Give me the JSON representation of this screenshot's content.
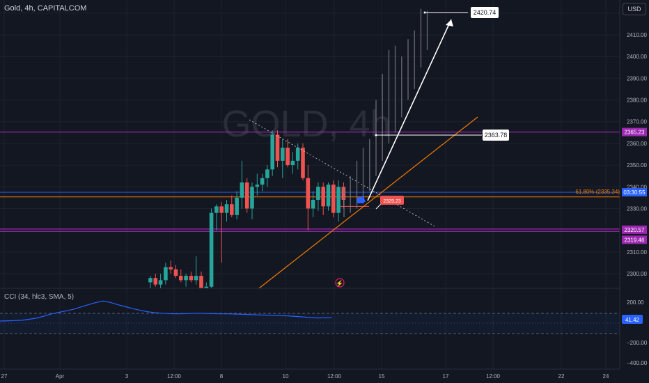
{
  "header": {
    "symbol": "Gold",
    "interval": "4h",
    "exchange": "CAPITALCOM",
    "separator": ", ",
    "currency": "USD"
  },
  "watermark": "GOLD, 4h",
  "price_axis": {
    "labels": [
      "2410.00",
      "2400.00",
      "2390.00",
      "2380.00",
      "2370.00",
      "2360.00",
      "2350.00",
      "2340.00",
      "2330.00",
      "2310.00",
      "2300.00"
    ]
  },
  "price_badges": [
    {
      "text": "2365.23",
      "color": "#9c27b0"
    },
    {
      "text": "03:30:55",
      "color": "#2962ff"
    },
    {
      "text": "2320.57",
      "color": "#9c27b0"
    },
    {
      "text": "2319.46",
      "color": "#9c27b0"
    }
  ],
  "fib_label": "61.80% (2335.34)",
  "callouts": [
    {
      "text": "2420.74"
    },
    {
      "text": "2363.78"
    },
    {
      "text": "2329.23"
    }
  ],
  "indicator": {
    "title": "CCI (34, hlc3, SMA, 5)",
    "axis_labels": [
      "200.00",
      "−200.00",
      "−400.00"
    ],
    "value": "41.42"
  },
  "time_axis": {
    "labels": [
      "27",
      "Apr",
      "3",
      "12:00",
      "8",
      "10",
      "12:00",
      "15",
      "17",
      "12:00",
      "22",
      "24"
    ]
  },
  "colors": {
    "background": "#131722",
    "up": "#26a69a",
    "down": "#ef5350",
    "resistance": "#9c27b0",
    "trendline": "#f57c00",
    "cci": "#2962ff",
    "projection": "#787b86"
  },
  "chart_data": {
    "type": "candlestick",
    "candles": [
      {
        "o": 2296,
        "h": 2299,
        "l": 2290,
        "c": 2298
      },
      {
        "o": 2298,
        "h": 2300,
        "l": 2294,
        "c": 2295
      },
      {
        "o": 2295,
        "h": 2300,
        "l": 2292,
        "c": 2297
      },
      {
        "o": 2297,
        "h": 2305,
        "l": 2295,
        "c": 2303
      },
      {
        "o": 2303,
        "h": 2306,
        "l": 2300,
        "c": 2302
      },
      {
        "o": 2302,
        "h": 2304,
        "l": 2298,
        "c": 2299
      },
      {
        "o": 2299,
        "h": 2302,
        "l": 2296,
        "c": 2297
      },
      {
        "o": 2297,
        "h": 2300,
        "l": 2294,
        "c": 2299
      },
      {
        "o": 2299,
        "h": 2301,
        "l": 2296,
        "c": 2297
      },
      {
        "o": 2297,
        "h": 2308,
        "l": 2295,
        "c": 2299
      },
      {
        "o": 2299,
        "h": 2301,
        "l": 2290,
        "c": 2292
      },
      {
        "o": 2292,
        "h": 2296,
        "l": 2289,
        "c": 2294
      },
      {
        "o": 2294,
        "h": 2330,
        "l": 2290,
        "c": 2328
      },
      {
        "o": 2328,
        "h": 2332,
        "l": 2320,
        "c": 2331
      },
      {
        "o": 2331,
        "h": 2333,
        "l": 2305,
        "c": 2328
      },
      {
        "o": 2328,
        "h": 2334,
        "l": 2324,
        "c": 2332
      },
      {
        "o": 2332,
        "h": 2336,
        "l": 2326,
        "c": 2327
      },
      {
        "o": 2327,
        "h": 2338,
        "l": 2325,
        "c": 2335
      },
      {
        "o": 2335,
        "h": 2352,
        "l": 2330,
        "c": 2342
      },
      {
        "o": 2342,
        "h": 2344,
        "l": 2328,
        "c": 2330
      },
      {
        "o": 2330,
        "h": 2342,
        "l": 2325,
        "c": 2340
      },
      {
        "o": 2340,
        "h": 2346,
        "l": 2336,
        "c": 2341
      },
      {
        "o": 2341,
        "h": 2346,
        "l": 2338,
        "c": 2344
      },
      {
        "o": 2344,
        "h": 2350,
        "l": 2340,
        "c": 2348
      },
      {
        "o": 2348,
        "h": 2366,
        "l": 2345,
        "c": 2364
      },
      {
        "o": 2364,
        "h": 2366,
        "l": 2349,
        "c": 2352
      },
      {
        "o": 2352,
        "h": 2362,
        "l": 2344,
        "c": 2358
      },
      {
        "o": 2358,
        "h": 2362,
        "l": 2349,
        "c": 2350
      },
      {
        "o": 2350,
        "h": 2356,
        "l": 2346,
        "c": 2352
      },
      {
        "o": 2352,
        "h": 2360,
        "l": 2348,
        "c": 2358
      },
      {
        "o": 2358,
        "h": 2360,
        "l": 2343,
        "c": 2344
      },
      {
        "o": 2344,
        "h": 2350,
        "l": 2320,
        "c": 2330
      },
      {
        "o": 2330,
        "h": 2338,
        "l": 2326,
        "c": 2334
      },
      {
        "o": 2334,
        "h": 2342,
        "l": 2329,
        "c": 2340
      },
      {
        "o": 2340,
        "h": 2342,
        "l": 2327,
        "c": 2331
      },
      {
        "o": 2331,
        "h": 2342,
        "l": 2329,
        "c": 2341
      },
      {
        "o": 2341,
        "h": 2343,
        "l": 2326,
        "c": 2328
      },
      {
        "o": 2328,
        "h": 2343,
        "l": 2324,
        "c": 2340
      },
      {
        "o": 2340,
        "h": 2342,
        "l": 2330,
        "c": 2334
      }
    ],
    "projection_highs": [
      2340,
      2345,
      2352,
      2358,
      2362,
      2380,
      2392,
      2403,
      2405,
      2400,
      2408,
      2412,
      2422,
      2421
    ],
    "projection_lows": [
      2326,
      2328,
      2330,
      2334,
      2338,
      2345,
      2352,
      2360,
      2365,
      2372,
      2380,
      2385,
      2395,
      2403
    ],
    "cci": [
      10,
      12,
      15,
      18,
      28,
      40,
      58,
      80,
      95,
      110,
      125,
      148,
      170,
      190,
      205,
      190,
      168,
      150,
      130,
      115,
      100,
      92,
      86,
      82,
      80,
      82,
      85,
      86,
      84,
      82,
      80,
      80,
      78,
      75,
      72,
      70,
      68,
      65,
      62,
      60,
      55,
      50,
      45,
      40,
      42,
      41
    ],
    "levels": {
      "resistance_upper": 2365.23,
      "support_upper": 2320.57,
      "support_lower": 2319.46,
      "fib_618": 2335.34
    },
    "ylim": [
      2292,
      2426
    ]
  }
}
